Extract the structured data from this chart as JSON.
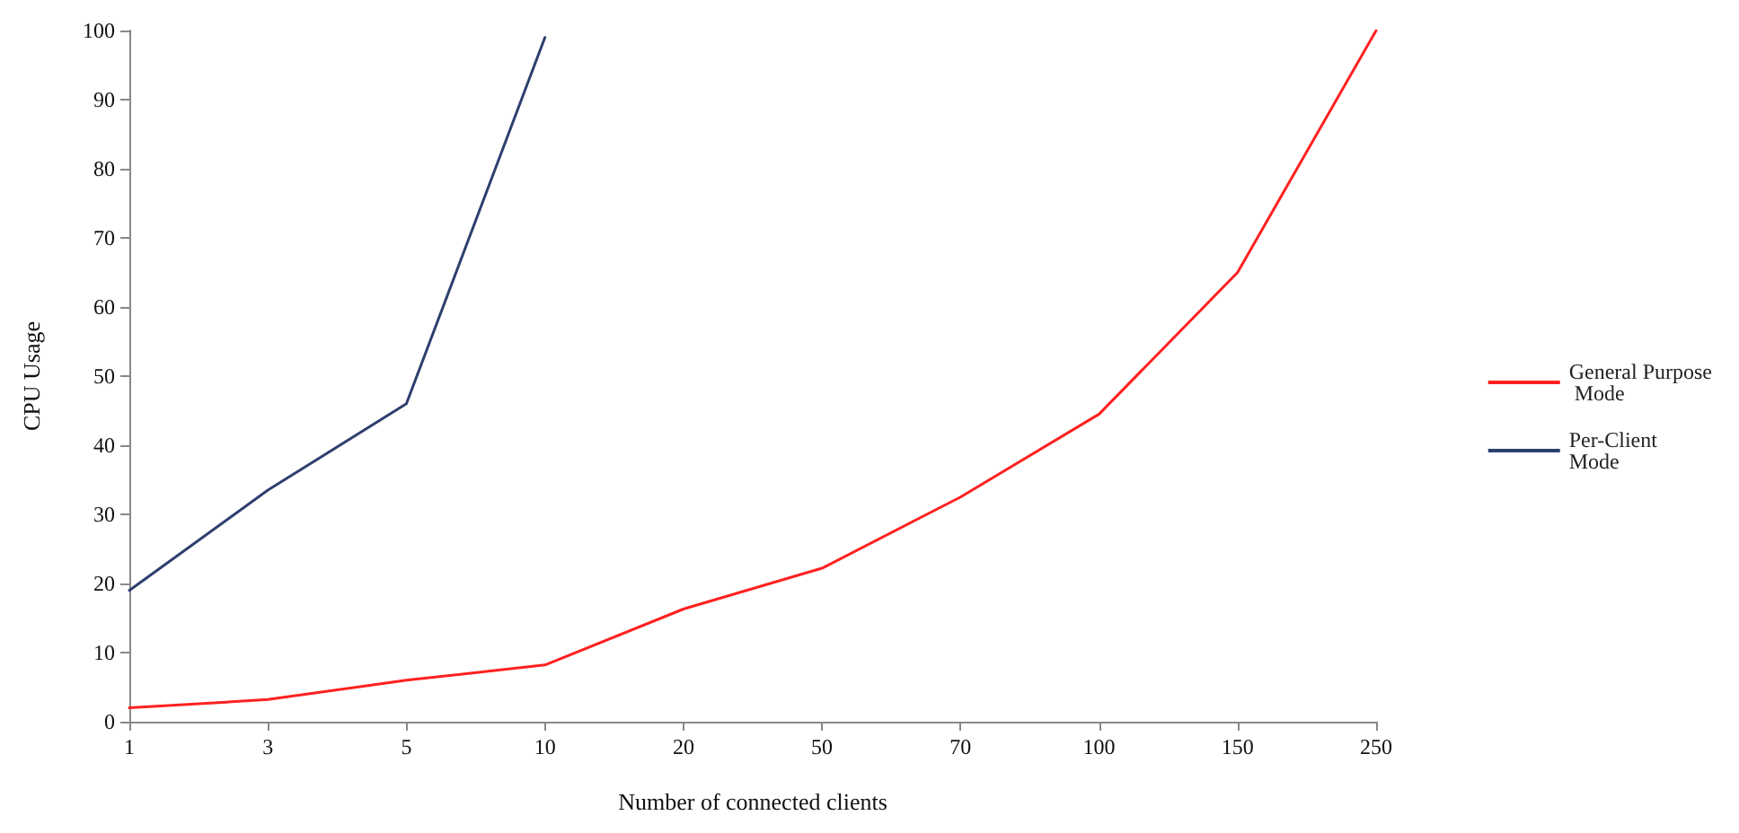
{
  "chart_data": {
    "type": "line",
    "xlabel": "Number of connected clients",
    "ylabel": "CPU Usage",
    "categories": [
      "1",
      "3",
      "5",
      "10",
      "20",
      "50",
      "70",
      "100",
      "150",
      "250"
    ],
    "series": [
      {
        "name": "General Purpose Mode",
        "color": "#ff2020",
        "values": [
          2,
          3.2,
          6,
          8.2,
          16.3,
          22.2,
          32.5,
          44.5,
          65,
          100
        ]
      },
      {
        "name": "Per-Client Mode",
        "color": "#2e3f6e",
        "values": [
          19,
          33.5,
          46,
          99,
          null,
          null,
          null,
          null,
          null,
          null
        ]
      }
    ],
    "ylim": [
      0,
      100
    ],
    "yticks": [
      0,
      10,
      20,
      30,
      40,
      50,
      60,
      70,
      80,
      90,
      100
    ],
    "grid": false,
    "legend": "right",
    "marker": "none",
    "line_style": "solid"
  }
}
